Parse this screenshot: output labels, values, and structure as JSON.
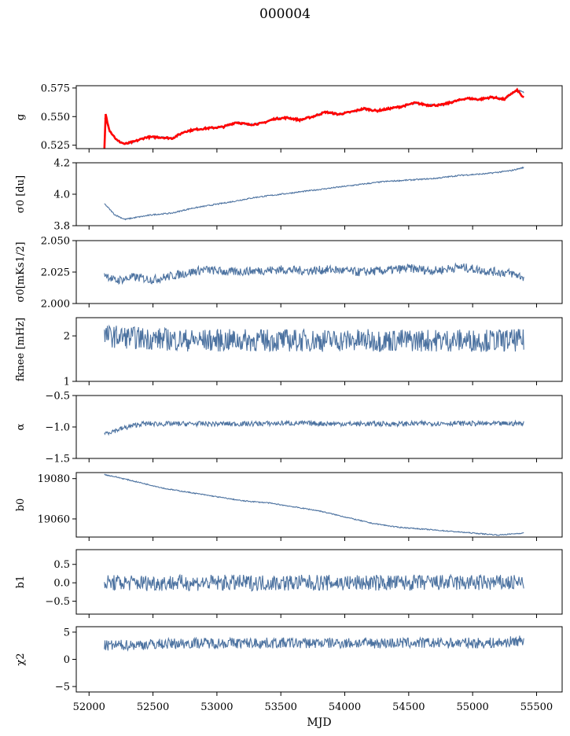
{
  "figure": {
    "title": "000004",
    "xlabel": "MJD"
  },
  "colors": {
    "trace": "#4c72a0",
    "fit": "#ff0000",
    "axes": "#000000"
  },
  "chart_data": [
    {
      "type": "line",
      "ylabel": "g",
      "xlim": [
        51900,
        55700
      ],
      "ylim": [
        0.522,
        0.577
      ],
      "yticks": [
        "0.525",
        "0.550",
        "0.575"
      ],
      "ytick_values": [
        0.525,
        0.55,
        0.575
      ],
      "noise": 0.0008,
      "series": [
        {
          "x": [
            52120,
            52160,
            52220,
            52280,
            52350,
            52450,
            52550,
            52650,
            52750,
            52850,
            52950,
            53050,
            53150,
            53250,
            53350,
            53450,
            53550,
            53650,
            53750,
            53850,
            53950,
            54050,
            54150,
            54250,
            54350,
            54450,
            54550,
            54650,
            54750,
            54850,
            54950,
            55050,
            55150,
            55250,
            55300,
            55350,
            55400
          ],
          "y": [
            0.549,
            0.538,
            0.529,
            0.526,
            0.528,
            0.532,
            0.532,
            0.531,
            0.537,
            0.539,
            0.54,
            0.541,
            0.545,
            0.543,
            0.544,
            0.548,
            0.549,
            0.547,
            0.55,
            0.554,
            0.552,
            0.554,
            0.557,
            0.555,
            0.557,
            0.559,
            0.562,
            0.56,
            0.56,
            0.563,
            0.566,
            0.565,
            0.567,
            0.565,
            0.57,
            0.573,
            0.571
          ]
        }
      ],
      "fit_series": {
        "x": [
          52120,
          52130,
          52160,
          52220,
          52280,
          52350,
          52450,
          52550,
          52650,
          52750,
          52850,
          52950,
          53050,
          53150,
          53250,
          53350,
          53450,
          53550,
          53650,
          53750,
          53850,
          53950,
          54050,
          54150,
          54250,
          54350,
          54450,
          54550,
          54650,
          54750,
          54850,
          54950,
          55050,
          55150,
          55250,
          55300,
          55350,
          55400
        ],
        "y": [
          0.521,
          0.552,
          0.538,
          0.529,
          0.526,
          0.528,
          0.532,
          0.532,
          0.531,
          0.537,
          0.539,
          0.54,
          0.541,
          0.545,
          0.543,
          0.544,
          0.548,
          0.549,
          0.547,
          0.55,
          0.554,
          0.552,
          0.554,
          0.557,
          0.555,
          0.557,
          0.559,
          0.562,
          0.56,
          0.56,
          0.563,
          0.566,
          0.565,
          0.567,
          0.565,
          0.57,
          0.573,
          0.566
        ]
      }
    },
    {
      "type": "line",
      "ylabel": "σ0 [du]",
      "xlim": [
        51900,
        55700
      ],
      "ylim": [
        3.8,
        4.2
      ],
      "yticks": [
        "3.8",
        "4.0",
        "4.2"
      ],
      "ytick_values": [
        3.8,
        4.0,
        4.2
      ],
      "noise": 0.004,
      "series": [
        {
          "x": [
            52120,
            52200,
            52280,
            52350,
            52500,
            52650,
            52800,
            52950,
            53100,
            53300,
            53500,
            53700,
            53900,
            54100,
            54300,
            54500,
            54700,
            54900,
            55100,
            55300,
            55400
          ],
          "y": [
            3.94,
            3.87,
            3.84,
            3.85,
            3.87,
            3.88,
            3.91,
            3.93,
            3.95,
            3.98,
            4.0,
            4.02,
            4.04,
            4.06,
            4.08,
            4.09,
            4.1,
            4.12,
            4.13,
            4.15,
            4.17
          ]
        }
      ]
    },
    {
      "type": "line",
      "ylabel": "σ0[mKs1/2]",
      "xlim": [
        51900,
        55700
      ],
      "ylim": [
        2.0,
        2.05
      ],
      "yticks": [
        "2.000",
        "2.025",
        "2.050"
      ],
      "ytick_values": [
        2.0,
        2.025,
        2.05
      ],
      "noise": 0.0035,
      "series": [
        {
          "x": [
            52120,
            52200,
            52350,
            52500,
            52700,
            52900,
            53100,
            53300,
            53500,
            53700,
            53900,
            54100,
            54300,
            54500,
            54700,
            54900,
            55100,
            55300,
            55400
          ],
          "y": [
            2.024,
            2.018,
            2.021,
            2.019,
            2.023,
            2.027,
            2.025,
            2.026,
            2.027,
            2.026,
            2.027,
            2.025,
            2.026,
            2.028,
            2.026,
            2.029,
            2.026,
            2.024,
            2.021
          ]
        }
      ]
    },
    {
      "type": "line",
      "ylabel": "fknee [mHz]",
      "xlim": [
        51900,
        55700
      ],
      "ylim": [
        1.0,
        2.4
      ],
      "yticks": [
        "1",
        "2"
      ],
      "ytick_values": [
        1,
        2
      ],
      "noise": 0.25,
      "series": [
        {
          "x": [
            52120,
            52400,
            52800,
            53200,
            53600,
            54000,
            54400,
            54800,
            55200,
            55400
          ],
          "y": [
            2.0,
            1.95,
            1.9,
            1.9,
            1.9,
            1.9,
            1.9,
            1.9,
            1.9,
            1.9
          ]
        }
      ]
    },
    {
      "type": "line",
      "ylabel": "α",
      "xlim": [
        51900,
        55700
      ],
      "ylim": [
        -1.5,
        -0.5
      ],
      "yticks": [
        "−1.5",
        "−1.0",
        "−0.5"
      ],
      "ytick_values": [
        -1.5,
        -1.0,
        -0.5
      ],
      "noise": 0.04,
      "series": [
        {
          "x": [
            52120,
            52400,
            52800,
            53200,
            53600,
            54000,
            54400,
            54800,
            55200,
            55400
          ],
          "y": [
            -1.1,
            -0.95,
            -0.95,
            -0.95,
            -0.94,
            -0.95,
            -0.95,
            -0.94,
            -0.95,
            -0.94
          ]
        }
      ]
    },
    {
      "type": "line",
      "ylabel": "b0",
      "xlim": [
        51900,
        55700
      ],
      "ylim": [
        19051,
        19083
      ],
      "yticks": [
        "19060",
        "19080"
      ],
      "ytick_values": [
        19060,
        19080
      ],
      "noise": 0.25,
      "series": [
        {
          "x": [
            52120,
            52200,
            52400,
            52600,
            52800,
            53000,
            53200,
            53400,
            53600,
            53800,
            54000,
            54200,
            54400,
            54600,
            54800,
            55000,
            55200,
            55400
          ],
          "y": [
            19082,
            19081,
            19078,
            19075,
            19073,
            19071,
            19069,
            19068,
            19066,
            19064,
            19061,
            19058,
            19056,
            19055,
            19054,
            19053,
            19052,
            19053
          ]
        }
      ]
    },
    {
      "type": "line",
      "ylabel": "b1",
      "xlim": [
        51900,
        55700
      ],
      "ylim": [
        -0.85,
        0.9
      ],
      "yticks": [
        "−0.5",
        "0.0",
        "0.5"
      ],
      "ytick_values": [
        -0.5,
        0.0,
        0.5
      ],
      "noise": 0.22,
      "series": [
        {
          "x": [
            52120,
            52800,
            53600,
            54400,
            55200,
            55400
          ],
          "y": [
            0.0,
            0.0,
            0.0,
            0.0,
            0.0,
            0.0
          ]
        }
      ]
    },
    {
      "type": "line",
      "ylabel": "χ2",
      "xlim": [
        51900,
        55700
      ],
      "ylim": [
        -6,
        6
      ],
      "yticks": [
        "−5",
        "0",
        "5"
      ],
      "ytick_values": [
        -5,
        0,
        5
      ],
      "xticks": [
        "52000",
        "52500",
        "53000",
        "53500",
        "54000",
        "54500",
        "55000",
        "55500"
      ],
      "xtick_values": [
        52000,
        52500,
        53000,
        53500,
        54000,
        54500,
        55000,
        55500
      ],
      "noise": 1.0,
      "series": [
        {
          "x": [
            52120,
            52800,
            53600,
            54400,
            55200,
            55400
          ],
          "y": [
            2.5,
            3.0,
            3.0,
            3.0,
            3.0,
            3.5
          ]
        }
      ]
    }
  ]
}
